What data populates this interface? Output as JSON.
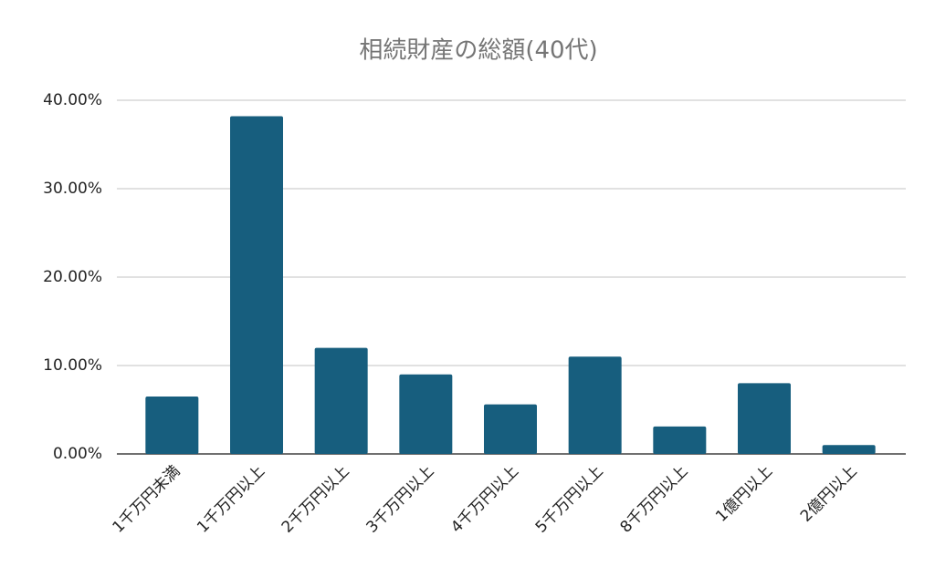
{
  "chart_data": {
    "type": "bar",
    "title": "相続財産の総額(40代)",
    "categories": [
      "1千万円未満",
      "1千万円以上",
      "2千万円以上",
      "3千万円以上",
      "4千万円以上",
      "5千万円以上",
      "8千万円以上",
      "1億円以上",
      "2億円以上"
    ],
    "values": [
      6.5,
      38.2,
      12.0,
      9.0,
      5.6,
      11.0,
      3.1,
      8.0,
      1.0
    ],
    "color": "#175e7e",
    "ylim": [
      0,
      40
    ],
    "yticks": [
      {
        "value": 0,
        "label": "0.00%"
      },
      {
        "value": 10,
        "label": "10.00%"
      },
      {
        "value": 20,
        "label": "20.00%"
      },
      {
        "value": 30,
        "label": "30.00%"
      },
      {
        "value": 40,
        "label": "40.00%"
      }
    ],
    "grid": true
  }
}
